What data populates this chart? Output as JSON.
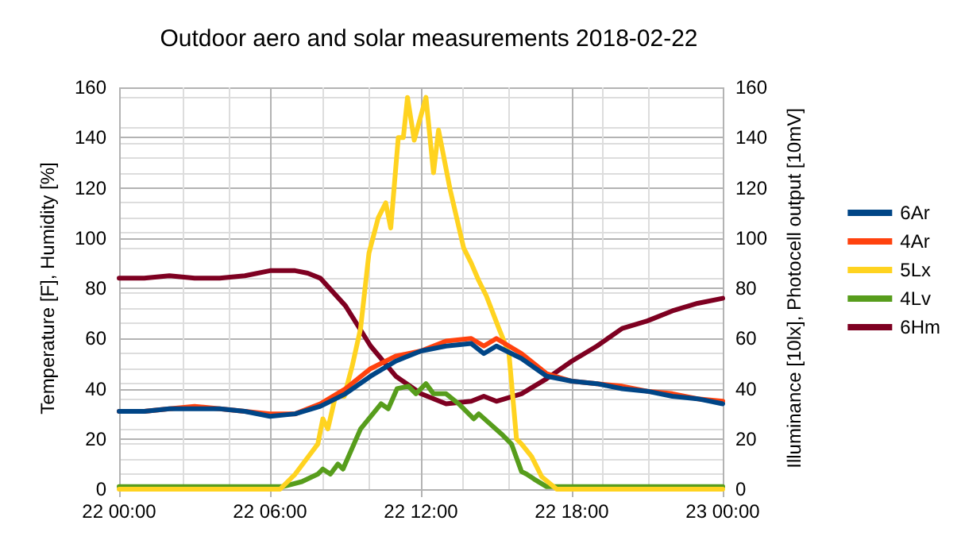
{
  "chart_data": {
    "type": "line",
    "title": "Outdoor aero and solar measurements 2018-02-22",
    "ylabel": "Temperature [F], Humidity [%]",
    "y2label": "Illuminance [10lx], Photocell output [10mV]",
    "xlim": [
      "2018-02-22T00:00",
      "2018-02-23T00:00"
    ],
    "xticks": [
      {
        "value": "2018-02-22T00:00",
        "label": "22 00:00"
      },
      {
        "value": "2018-02-22T06:00",
        "label": "22 06:00"
      },
      {
        "value": "2018-02-22T12:00",
        "label": "22 12:00"
      },
      {
        "value": "2018-02-22T18:00",
        "label": "22 18:00"
      },
      {
        "value": "2018-02-23T00:00",
        "label": "23 00:00"
      }
    ],
    "ylim": [
      0,
      160
    ],
    "yticks": [
      0,
      20,
      40,
      60,
      80,
      100,
      120,
      140,
      160
    ],
    "y2lim": [
      0,
      160
    ],
    "y2ticks": [
      0,
      20,
      40,
      60,
      80,
      100,
      120,
      140,
      160
    ],
    "grid": true,
    "legend": "right",
    "marker": "none",
    "line_style": "solid",
    "series": [
      {
        "name": "6Ar",
        "color": "#004586",
        "x": [
          "2018-02-22T00:00",
          "2018-02-22T01:00",
          "2018-02-22T02:00",
          "2018-02-22T03:00",
          "2018-02-22T04:00",
          "2018-02-22T05:00",
          "2018-02-22T06:00",
          "2018-02-22T07:00",
          "2018-02-22T08:00",
          "2018-02-22T09:00",
          "2018-02-22T10:00",
          "2018-02-22T11:00",
          "2018-02-22T12:00",
          "2018-02-22T13:00",
          "2018-02-22T14:00",
          "2018-02-22T14:30",
          "2018-02-22T15:00",
          "2018-02-22T16:00",
          "2018-02-22T17:00",
          "2018-02-22T18:00",
          "2018-02-22T19:00",
          "2018-02-22T20:00",
          "2018-02-22T21:00",
          "2018-02-22T22:00",
          "2018-02-22T23:00",
          "2018-02-23T00:00"
        ],
        "values": [
          31,
          31,
          32,
          32,
          32,
          31,
          29,
          30,
          33,
          38,
          45,
          51,
          55,
          57,
          58,
          54,
          57,
          52,
          45,
          43,
          42,
          40,
          39,
          37,
          36,
          34
        ]
      },
      {
        "name": "4Ar",
        "color": "#ff420e",
        "x": [
          "2018-02-22T00:00",
          "2018-02-22T01:00",
          "2018-02-22T02:00",
          "2018-02-22T03:00",
          "2018-02-22T04:00",
          "2018-02-22T05:00",
          "2018-02-22T06:00",
          "2018-02-22T07:00",
          "2018-02-22T08:00",
          "2018-02-22T09:00",
          "2018-02-22T10:00",
          "2018-02-22T11:00",
          "2018-02-22T12:00",
          "2018-02-22T13:00",
          "2018-02-22T14:00",
          "2018-02-22T14:30",
          "2018-02-22T15:00",
          "2018-02-22T16:00",
          "2018-02-22T17:00",
          "2018-02-22T18:00",
          "2018-02-22T19:00",
          "2018-02-22T20:00",
          "2018-02-22T21:00",
          "2018-02-22T22:00",
          "2018-02-22T23:00",
          "2018-02-23T00:00"
        ],
        "values": [
          31,
          31,
          32,
          33,
          32,
          31,
          30,
          30,
          34,
          40,
          48,
          53,
          55,
          59,
          60,
          57,
          60,
          54,
          46,
          43,
          42,
          41,
          39,
          38,
          36,
          35
        ]
      },
      {
        "name": "5Lx",
        "color": "#ffd320",
        "x": [
          "2018-02-22T00:00",
          "2018-02-22T06:24",
          "2018-02-22T07:00",
          "2018-02-22T07:36",
          "2018-02-22T07:54",
          "2018-02-22T08:06",
          "2018-02-22T08:18",
          "2018-02-22T08:36",
          "2018-02-22T08:57",
          "2018-02-22T09:16",
          "2018-02-22T09:36",
          "2018-02-22T09:56",
          "2018-02-22T10:18",
          "2018-02-22T10:36",
          "2018-02-22T10:48",
          "2018-02-22T11:06",
          "2018-02-22T11:18",
          "2018-02-22T11:28",
          "2018-02-22T11:44",
          "2018-02-22T12:12",
          "2018-02-22T12:30",
          "2018-02-22T12:42",
          "2018-02-22T13:10",
          "2018-02-22T13:42",
          "2018-02-22T14:00",
          "2018-02-22T14:18",
          "2018-02-22T14:36",
          "2018-02-22T15:06",
          "2018-02-22T15:30",
          "2018-02-22T15:48",
          "2018-02-22T16:00",
          "2018-02-22T16:24",
          "2018-02-22T16:48",
          "2018-02-22T17:24",
          "2018-02-22T18:00",
          "2018-02-23T00:00"
        ],
        "values": [
          0,
          0,
          6,
          14,
          18,
          28,
          24,
          37,
          37,
          49,
          64,
          94,
          108,
          114,
          104,
          140,
          140,
          156,
          139,
          156,
          126,
          143,
          119,
          96,
          90,
          83,
          77,
          64,
          54,
          20,
          18,
          13,
          5,
          0,
          0,
          0
        ]
      },
      {
        "name": "4Lv",
        "color": "#579d1c",
        "x": [
          "2018-02-22T00:00",
          "2018-02-22T06:30",
          "2018-02-22T07:16",
          "2018-02-22T07:54",
          "2018-02-22T08:06",
          "2018-02-22T08:24",
          "2018-02-22T08:42",
          "2018-02-22T08:54",
          "2018-02-22T09:36",
          "2018-02-22T10:25",
          "2018-02-22T10:42",
          "2018-02-22T11:03",
          "2018-02-22T11:30",
          "2018-02-22T11:48",
          "2018-02-22T12:12",
          "2018-02-22T12:30",
          "2018-02-22T13:00",
          "2018-02-22T13:30",
          "2018-02-22T14:06",
          "2018-02-22T14:18",
          "2018-02-22T15:12",
          "2018-02-22T15:36",
          "2018-02-22T16:00",
          "2018-02-22T16:12",
          "2018-02-22T16:30",
          "2018-02-22T17:00",
          "2018-02-23T00:00"
        ],
        "values": [
          1,
          1,
          3,
          6,
          8,
          6,
          10,
          8,
          24,
          34,
          32,
          40,
          41,
          38,
          42,
          38,
          38,
          34,
          28,
          30,
          22,
          18,
          7,
          6,
          4,
          1,
          1
        ]
      },
      {
        "name": "6Hm",
        "color": "#7e0021",
        "x": [
          "2018-02-22T00:00",
          "2018-02-22T01:00",
          "2018-02-22T02:00",
          "2018-02-22T03:00",
          "2018-02-22T04:00",
          "2018-02-22T05:00",
          "2018-02-22T06:00",
          "2018-02-22T07:00",
          "2018-02-22T07:30",
          "2018-02-22T08:00",
          "2018-02-22T09:00",
          "2018-02-22T10:00",
          "2018-02-22T11:00",
          "2018-02-22T12:00",
          "2018-02-22T13:00",
          "2018-02-22T14:00",
          "2018-02-22T14:30",
          "2018-02-22T15:00",
          "2018-02-22T16:00",
          "2018-02-22T17:00",
          "2018-02-22T18:00",
          "2018-02-22T19:00",
          "2018-02-22T20:00",
          "2018-02-22T21:00",
          "2018-02-22T22:00",
          "2018-02-22T23:00",
          "2018-02-23T00:00"
        ],
        "values": [
          84,
          84,
          85,
          84,
          84,
          85,
          87,
          87,
          86,
          84,
          73,
          57,
          45,
          38,
          34,
          35,
          37,
          35,
          38,
          44,
          51,
          57,
          64,
          67,
          71,
          74,
          76
        ]
      }
    ]
  }
}
